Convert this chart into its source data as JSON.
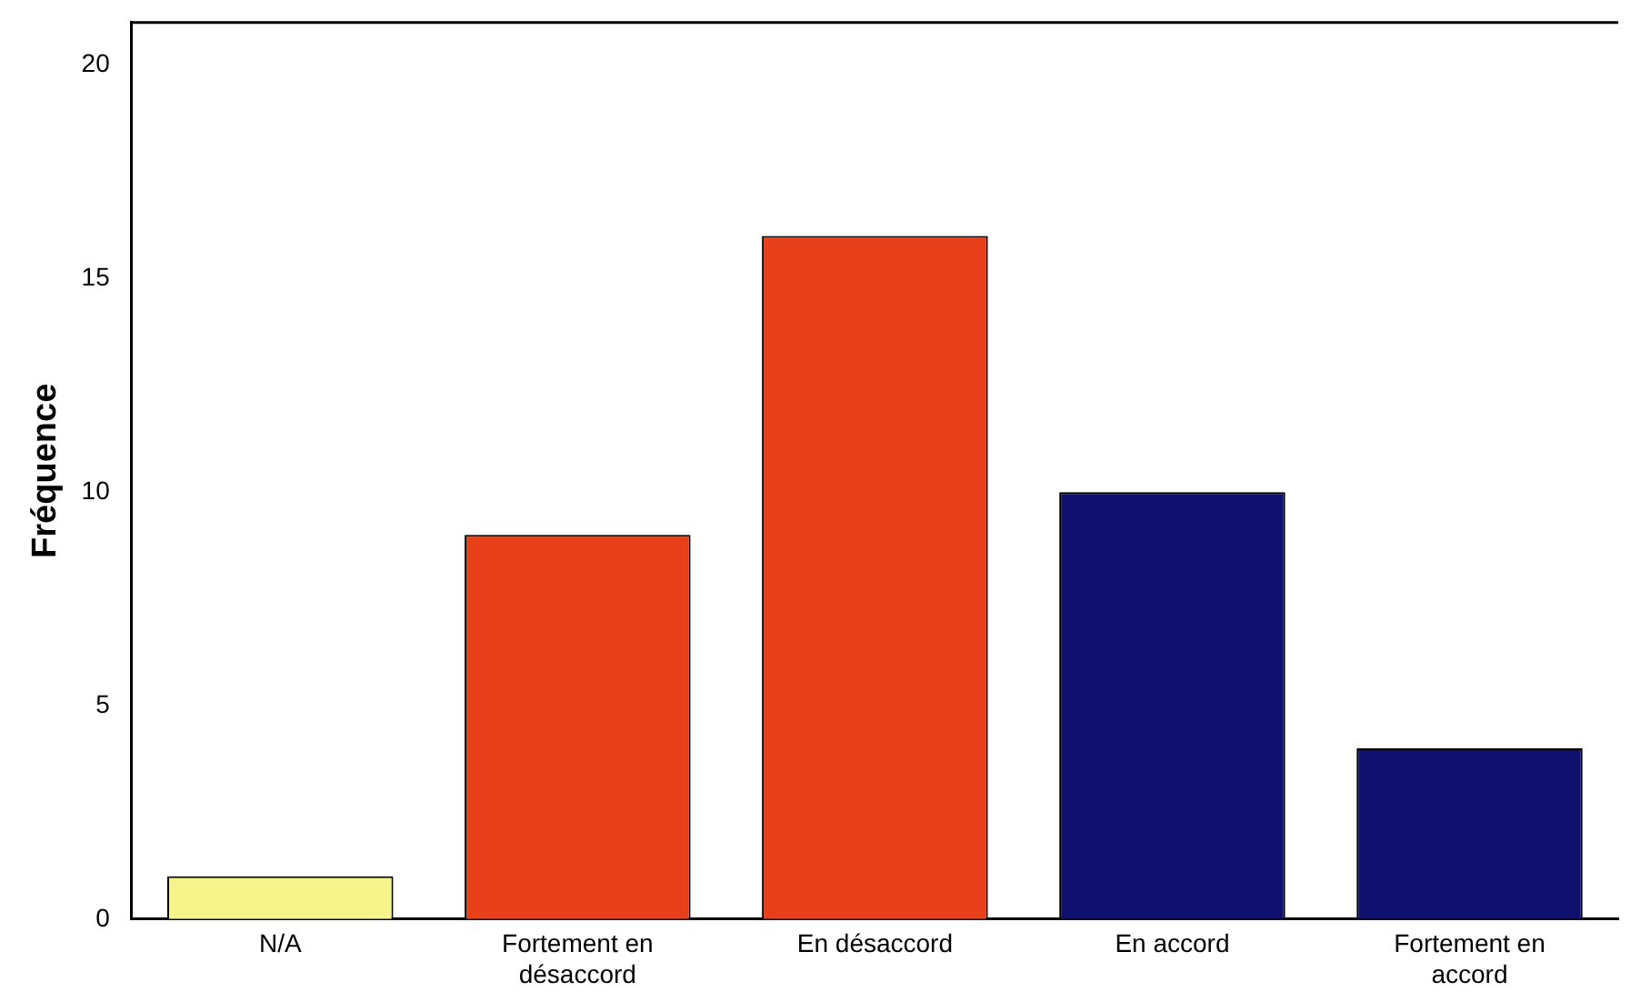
{
  "chart_data": {
    "type": "bar",
    "ylabel": "Fréquence",
    "categories": [
      "N/A",
      "Fortement en désaccord",
      "En désaccord",
      "En accord",
      "Fortement en accord"
    ],
    "values": [
      1,
      9,
      16,
      10,
      4
    ],
    "colors": [
      "#f5f58c",
      "#e8401a",
      "#e8401a",
      "#10106e",
      "#10106e"
    ],
    "ylim": [
      0,
      21
    ],
    "yticks": [
      0,
      5,
      10,
      15,
      20
    ],
    "grid": false,
    "legend": false
  }
}
